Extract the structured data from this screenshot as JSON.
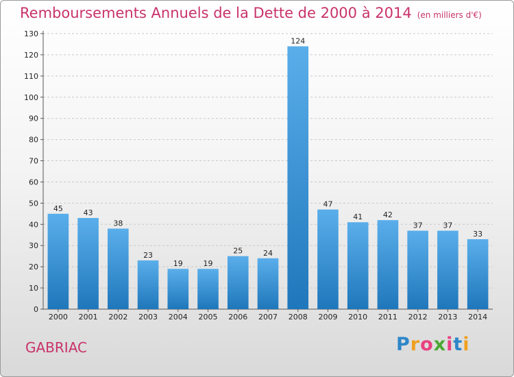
{
  "title": "Remboursements Annuels de la Dette de 2000 à 2014",
  "unit": "(en milliers d'€)",
  "city": "GABRIAC",
  "logo": {
    "letters": [
      "P",
      "r",
      "o",
      "x",
      "i",
      "t",
      "i"
    ],
    "colors": [
      "#2e86c8",
      "#f0a020",
      "#e94080",
      "#4aa832",
      "#e94080",
      "#2e86c8",
      "#f0a020"
    ]
  },
  "colors": {
    "bar_light": "#5aaeea",
    "bar_dark": "#1f77bb",
    "title": "#c8326a"
  },
  "chart_data": {
    "type": "bar",
    "title": "Remboursements Annuels de la Dette de 2000 à 2014",
    "subtitle": "(en milliers d'€)",
    "categories": [
      "2000",
      "2001",
      "2002",
      "2003",
      "2004",
      "2005",
      "2006",
      "2007",
      "2008",
      "2009",
      "2010",
      "2011",
      "2012",
      "2013",
      "2014"
    ],
    "values": [
      45,
      43,
      38,
      23,
      19,
      19,
      25,
      24,
      124,
      47,
      41,
      42,
      37,
      37,
      33
    ],
    "ylim": [
      0,
      130
    ],
    "yticks": [
      0,
      10,
      20,
      30,
      40,
      50,
      60,
      70,
      80,
      90,
      100,
      110,
      120,
      130
    ],
    "grid": true,
    "legend": "none"
  }
}
